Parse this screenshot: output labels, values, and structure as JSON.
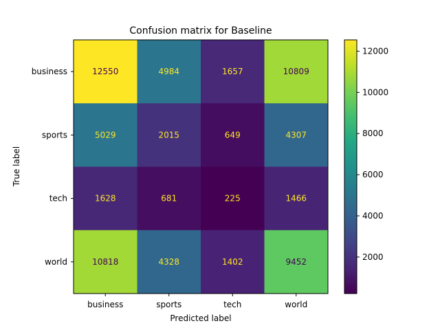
{
  "chart_data": {
    "type": "heatmap",
    "title": "Confusion matrix for Baseline",
    "xlabel": "Predicted label",
    "ylabel": "True label",
    "x_categories": [
      "business",
      "sports",
      "tech",
      "world"
    ],
    "y_categories": [
      "business",
      "sports",
      "tech",
      "world"
    ],
    "values": [
      [
        12550,
        4984,
        1657,
        10809
      ],
      [
        5029,
        2015,
        649,
        4307
      ],
      [
        1628,
        681,
        225,
        1466
      ],
      [
        10818,
        4328,
        1402,
        9452
      ]
    ],
    "colormap": "viridis",
    "value_range": [
      225,
      12550
    ],
    "colorbar_ticks": [
      2000,
      4000,
      6000,
      8000,
      10000,
      12000
    ],
    "grid": false,
    "text_colors": {
      "on_dark": "#fde725",
      "on_light": "#440154"
    }
  }
}
